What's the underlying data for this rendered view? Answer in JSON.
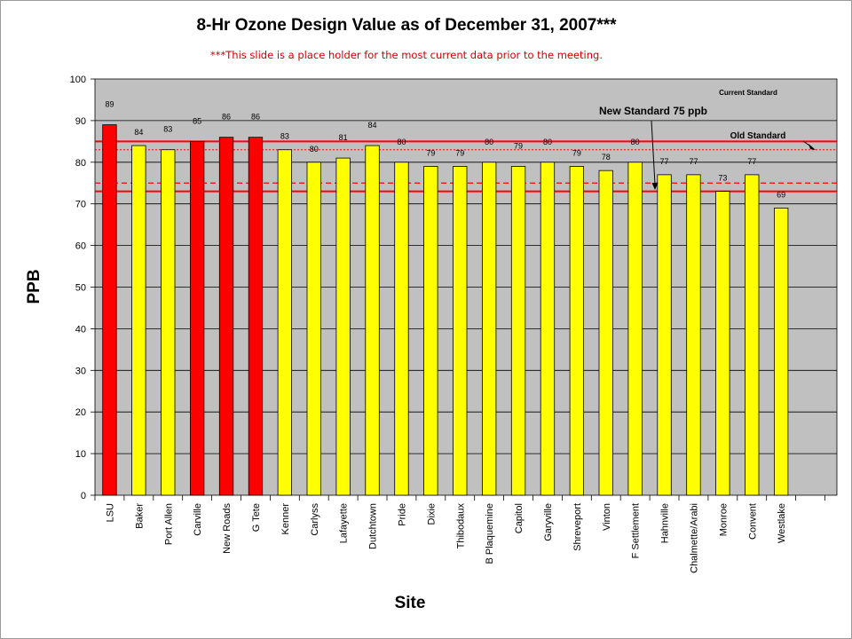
{
  "chart_data": {
    "type": "bar",
    "title": "8-Hr Ozone Design Value as of December 31, 2007***",
    "subtitle": "***This slide is a place holder for the most current data prior to the meeting.",
    "xlabel": "Site",
    "ylabel": "PPB",
    "ylim": [
      0,
      100
    ],
    "yticks": [
      0,
      10,
      20,
      30,
      40,
      50,
      60,
      70,
      80,
      90,
      100
    ],
    "grid": true,
    "categories": [
      "LSU",
      "Baker",
      "Port Allen",
      "Carville",
      "New Roads",
      "G Tete",
      "Kenner",
      "Carlyss",
      "Lafayette",
      "Dutchtown",
      "Pride",
      "Dixie",
      "Thibodaux",
      "B Plaquemine",
      "Capitol",
      "Garyville",
      "Shreveport",
      "Vinton",
      "F Settlement",
      "Hahnville",
      "Chalmette/Arabi",
      "Monroe",
      "Convent",
      "Westlake"
    ],
    "values": [
      89,
      84,
      83,
      85,
      86,
      86,
      83,
      80,
      81,
      84,
      80,
      79,
      79,
      80,
      79,
      80,
      79,
      78,
      80,
      77,
      77,
      73,
      77,
      69
    ],
    "bar_colors": [
      "#ff0000",
      "#ffff00",
      "#ffff00",
      "#ff0000",
      "#ff0000",
      "#ff0000",
      "#ffff00",
      "#ffff00",
      "#ffff00",
      "#ffff00",
      "#ffff00",
      "#ffff00",
      "#ffff00",
      "#ffff00",
      "#ffff00",
      "#ffff00",
      "#ffff00",
      "#ffff00",
      "#ffff00",
      "#ffff00",
      "#ffff00",
      "#ffff00",
      "#ffff00",
      "#ffff00"
    ],
    "reference_lines": [
      {
        "value": 85,
        "style": "solid",
        "color": "#ff0000"
      },
      {
        "value": 83,
        "style": "dotted",
        "color": "#ff0000"
      },
      {
        "value": 75,
        "style": "dashed",
        "color": "#ff0000"
      },
      {
        "value": 73,
        "style": "solid",
        "color": "#ff0000"
      }
    ],
    "annotations": [
      "Current Standard",
      "New Standard 75 ppb",
      "Old Standard"
    ],
    "plot_background": "#c0c0c0"
  }
}
